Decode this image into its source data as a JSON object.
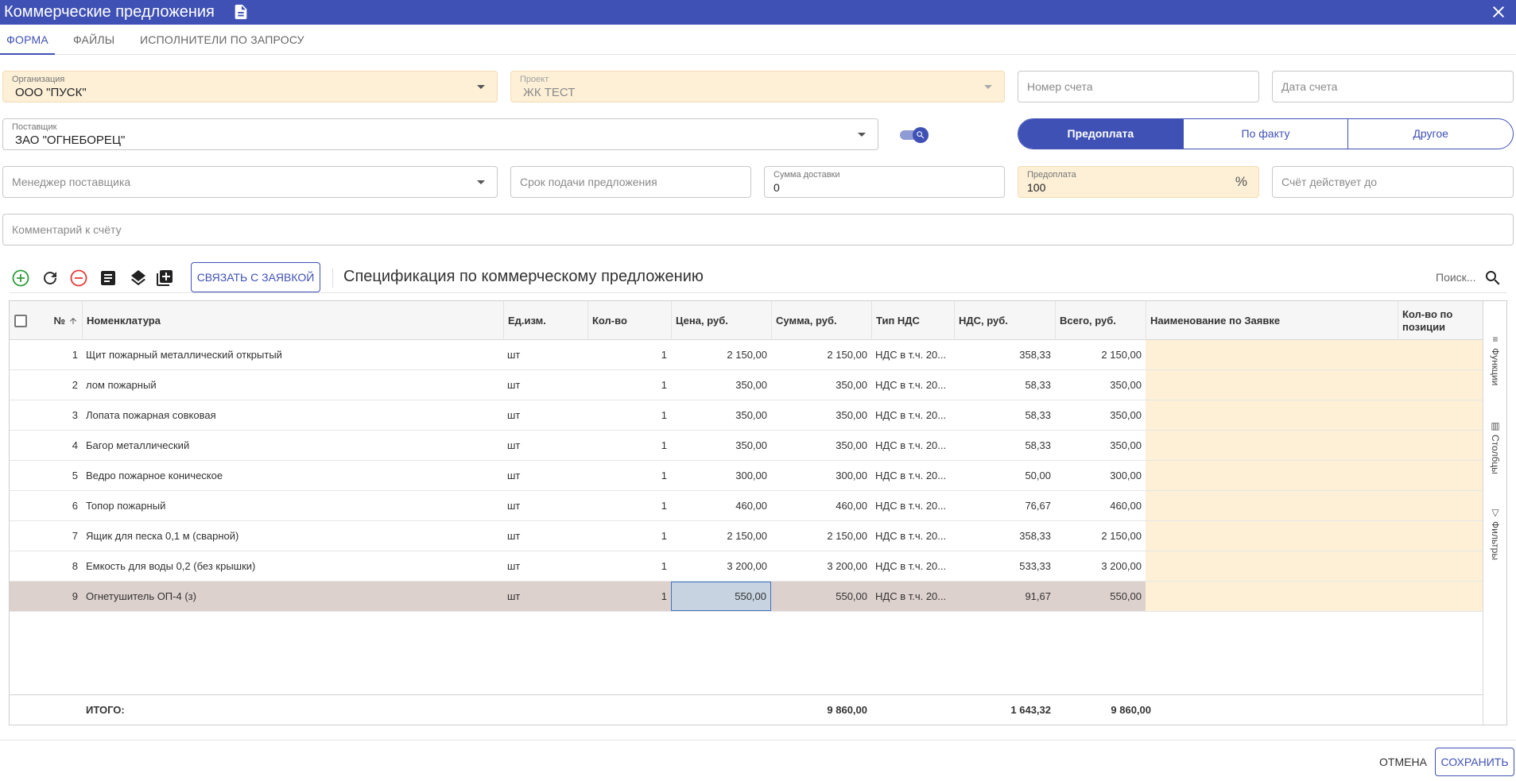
{
  "window": {
    "title": "Коммерческие предложения"
  },
  "tabs": [
    {
      "label": "ФОРМА"
    },
    {
      "label": "ФАЙЛЫ"
    },
    {
      "label": "ИСПОЛНИТЕЛИ ПО ЗАПРОСУ"
    }
  ],
  "form": {
    "organization": {
      "label": "Организация",
      "value": "ООО \"ПУСК\""
    },
    "project": {
      "label": "Проект",
      "value": "ЖК ТЕСТ"
    },
    "invoice_number": {
      "placeholder": "Номер счета"
    },
    "invoice_date": {
      "placeholder": "Дата счета"
    },
    "supplier": {
      "label": "Поставщик",
      "value": "ЗАО \"ОГНЕБОРЕЦ\""
    },
    "payment_type": {
      "options": [
        "Предоплата",
        "По факту",
        "Другое"
      ],
      "selected": "Предоплата"
    },
    "supplier_manager": {
      "placeholder": "Менеджер поставщика"
    },
    "offer_deadline": {
      "placeholder": "Срок подачи предложения"
    },
    "delivery_sum": {
      "label": "Сумма доставки",
      "value": "0"
    },
    "prepayment": {
      "label": "Предоплата",
      "value": "100",
      "unit": "%"
    },
    "valid_until": {
      "placeholder": "Счёт действует до"
    },
    "comment": {
      "placeholder": "Комментарий к счёту"
    }
  },
  "toolbar": {
    "link_button": "СВЯЗАТЬ С ЗАЯВКОЙ",
    "spec_title": "Спецификация по коммерческому предложению",
    "search_placeholder": "Поиск..."
  },
  "grid": {
    "columns": [
      "№",
      "Номенклатура",
      "Ед.изм.",
      "Кол-во",
      "Цена, руб.",
      "Сумма, руб.",
      "Тип НДС",
      "НДС, руб.",
      "Всего, руб.",
      "Наименование по Заявке",
      "Кол-во по позиции"
    ],
    "rows": [
      {
        "n": "1",
        "name": "Щит пожарный металлический открытый",
        "unit": "шт",
        "qty": "1",
        "price": "2 150,00",
        "sum": "2 150,00",
        "vat_type": "НДС в т.ч. 20...",
        "vat": "358,33",
        "total": "2 150,00"
      },
      {
        "n": "2",
        "name": "лом пожарный",
        "unit": "шт",
        "qty": "1",
        "price": "350,00",
        "sum": "350,00",
        "vat_type": "НДС в т.ч. 20...",
        "vat": "58,33",
        "total": "350,00"
      },
      {
        "n": "3",
        "name": "Лопата пожарная совковая",
        "unit": "шт",
        "qty": "1",
        "price": "350,00",
        "sum": "350,00",
        "vat_type": "НДС в т.ч. 20...",
        "vat": "58,33",
        "total": "350,00"
      },
      {
        "n": "4",
        "name": "Багор металлический",
        "unit": "шт",
        "qty": "1",
        "price": "350,00",
        "sum": "350,00",
        "vat_type": "НДС в т.ч. 20...",
        "vat": "58,33",
        "total": "350,00"
      },
      {
        "n": "5",
        "name": "Ведро пожарное коническое",
        "unit": "шт",
        "qty": "1",
        "price": "300,00",
        "sum": "300,00",
        "vat_type": "НДС в т.ч. 20...",
        "vat": "50,00",
        "total": "300,00"
      },
      {
        "n": "6",
        "name": "Топор пожарный",
        "unit": "шт",
        "qty": "1",
        "price": "460,00",
        "sum": "460,00",
        "vat_type": "НДС в т.ч. 20...",
        "vat": "76,67",
        "total": "460,00"
      },
      {
        "n": "7",
        "name": "Ящик для песка 0,1 м (сварной)",
        "unit": "шт",
        "qty": "1",
        "price": "2 150,00",
        "sum": "2 150,00",
        "vat_type": "НДС в т.ч. 20...",
        "vat": "358,33",
        "total": "2 150,00"
      },
      {
        "n": "8",
        "name": "Емкость для воды 0,2 (без крышки)",
        "unit": "шт",
        "qty": "1",
        "price": "3 200,00",
        "sum": "3 200,00",
        "vat_type": "НДС в т.ч. 20...",
        "vat": "533,33",
        "total": "3 200,00"
      },
      {
        "n": "9",
        "name": "Огнетушитель ОП-4 (з)",
        "unit": "шт",
        "qty": "1",
        "price": "550,00",
        "sum": "550,00",
        "vat_type": "НДС в т.ч. 20...",
        "vat": "91,67",
        "total": "550,00"
      }
    ],
    "totals": {
      "label": "ИТОГО:",
      "sum": "9 860,00",
      "vat": "1 643,32",
      "total": "9 860,00"
    },
    "side_panel": [
      "Функции",
      "Столбцы",
      "Фильтры"
    ]
  },
  "footer": {
    "cancel": "ОТМЕНА",
    "save": "СОХРАНИТЬ"
  },
  "colors": {
    "primary": "#3f51b5",
    "highlight": "#fdf0d7",
    "selected_row": "#ddd1cd"
  }
}
